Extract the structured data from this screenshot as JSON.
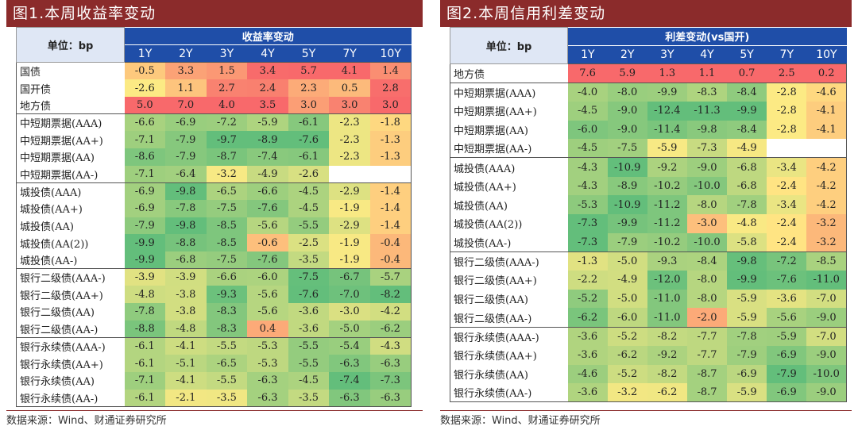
{
  "left": {
    "title": "图1.本周收益率变动",
    "unit_label": "单位：bp",
    "group_header": "收益率变动",
    "columns": [
      "1Y",
      "2Y",
      "3Y",
      "4Y",
      "5Y",
      "7Y",
      "10Y"
    ],
    "groups": [
      {
        "rows": [
          {
            "name": "国债",
            "values": [
              -0.5,
              3.3,
              1.5,
              3.4,
              5.7,
              4.1,
              1.4
            ]
          },
          {
            "name": "国开债",
            "values": [
              -2.6,
              1.1,
              2.7,
              2.4,
              2.3,
              0.5,
              2.8
            ]
          },
          {
            "name": "地方债",
            "values": [
              5.0,
              7.0,
              4.0,
              3.5,
              3.0,
              3.0,
              3.0
            ]
          }
        ]
      },
      {
        "rows": [
          {
            "name": "中短期票据(AAA)",
            "values": [
              -6.6,
              -6.9,
              -7.2,
              -5.9,
              -6.1,
              -2.3,
              -1.8
            ]
          },
          {
            "name": "中短期票据(AA+)",
            "values": [
              -7.1,
              -7.9,
              -9.7,
              -8.9,
              -7.6,
              -2.3,
              -1.3
            ]
          },
          {
            "name": "中短期票据(AA)",
            "values": [
              -8.6,
              -7.9,
              -8.7,
              -7.4,
              -6.1,
              -2.3,
              -1.3
            ]
          },
          {
            "name": "中短期票据(AA-)",
            "values": [
              -7.1,
              -6.4,
              -3.2,
              -4.9,
              -2.6,
              null,
              null
            ]
          }
        ]
      },
      {
        "rows": [
          {
            "name": "城投债(AAA)",
            "values": [
              -6.9,
              -9.8,
              -6.5,
              -6.6,
              -4.5,
              -2.9,
              -1.4
            ]
          },
          {
            "name": "城投债(AA+)",
            "values": [
              -6.9,
              -7.8,
              -7.5,
              -7.6,
              -4.5,
              -1.9,
              -1.4
            ]
          },
          {
            "name": "城投债(AA)",
            "values": [
              -7.9,
              -9.8,
              -8.5,
              -5.6,
              -5.5,
              -2.9,
              -1.4
            ]
          },
          {
            "name": "城投债(AA(2))",
            "values": [
              -9.9,
              -8.8,
              -8.5,
              -0.6,
              -2.5,
              -1.9,
              -0.4
            ]
          },
          {
            "name": "城投债(AA-)",
            "values": [
              -9.9,
              -6.8,
              -7.5,
              -7.6,
              -3.5,
              -1.9,
              -0.4
            ]
          }
        ]
      },
      {
        "rows": [
          {
            "name": "银行二级债(AAA-)",
            "values": [
              -3.9,
              -3.9,
              -6.6,
              -6.0,
              -7.5,
              -6.7,
              -5.7
            ]
          },
          {
            "name": "银行二级债(AA+)",
            "values": [
              -4.8,
              -3.8,
              -9.3,
              -5.6,
              -7.6,
              -7.0,
              -8.2
            ]
          },
          {
            "name": "银行二级债(AA)",
            "values": [
              -7.8,
              -3.8,
              -8.3,
              -5.6,
              -3.6,
              -3.0,
              -4.2
            ]
          },
          {
            "name": "银行二级债(AA-)",
            "values": [
              -8.8,
              -4.8,
              -8.3,
              0.4,
              -3.6,
              -5.0,
              -6.2
            ]
          }
        ]
      },
      {
        "rows": [
          {
            "name": "银行永续债(AAA-)",
            "values": [
              -6.1,
              -4.1,
              -5.5,
              -5.3,
              -5.5,
              -5.4,
              -4.3
            ]
          },
          {
            "name": "银行永续债(AA+)",
            "values": [
              -6.1,
              -5.1,
              -6.5,
              -5.3,
              -5.5,
              -6.3,
              -6.3
            ]
          },
          {
            "name": "银行永续债(AA)",
            "values": [
              -7.1,
              -4.1,
              -5.5,
              -6.3,
              -4.5,
              -7.4,
              -7.3
            ]
          },
          {
            "name": "银行永续债(AA-)",
            "values": [
              -6.1,
              -2.1,
              -3.5,
              -6.3,
              -3.5,
              -6.3,
              -6.3
            ]
          }
        ]
      }
    ],
    "source": "数据来源：Wind、财通证券研究所"
  },
  "right": {
    "title": "图2.本周信用利差变动",
    "unit_label": "单位：bp",
    "group_header": "利差变动(vs国开)",
    "columns": [
      "1Y",
      "2Y",
      "3Y",
      "4Y",
      "5Y",
      "7Y",
      "10Y"
    ],
    "groups": [
      {
        "rows": [
          {
            "name": "地方债",
            "values": [
              7.6,
              5.9,
              1.3,
              1.1,
              0.7,
              2.5,
              0.2
            ]
          }
        ]
      },
      {
        "rows": [
          {
            "name": "中短期票据(AAA)",
            "values": [
              -4.0,
              -8.0,
              -9.9,
              -8.3,
              -8.4,
              -2.8,
              -4.6
            ]
          },
          {
            "name": "中短期票据(AA+)",
            "values": [
              -4.5,
              -9.0,
              -12.4,
              -11.3,
              -9.9,
              -2.8,
              -4.1
            ]
          },
          {
            "name": "中短期票据(AA)",
            "values": [
              -6.0,
              -9.0,
              -11.4,
              -9.8,
              -8.4,
              -2.8,
              -4.1
            ]
          },
          {
            "name": "中短期票据(AA-)",
            "values": [
              -4.5,
              -7.5,
              -5.9,
              -7.3,
              -4.9,
              null,
              null
            ]
          }
        ]
      },
      {
        "rows": [
          {
            "name": "城投债(AAA)",
            "values": [
              -4.3,
              -10.9,
              -9.2,
              -9.0,
              -6.8,
              -3.4,
              -4.2
            ]
          },
          {
            "name": "城投债(AA+)",
            "values": [
              -4.3,
              -8.9,
              -10.2,
              -10.0,
              -6.8,
              -2.4,
              -4.2
            ]
          },
          {
            "name": "城投债(AA)",
            "values": [
              -5.3,
              -10.9,
              -11.2,
              -8.0,
              -7.8,
              -3.4,
              -4.2
            ]
          },
          {
            "name": "城投债(AA(2))",
            "values": [
              -7.3,
              -9.9,
              -11.2,
              -3.0,
              -4.8,
              -2.4,
              -3.2
            ]
          },
          {
            "name": "城投债(AA-)",
            "values": [
              -7.3,
              -7.9,
              -10.2,
              -10.0,
              -5.8,
              -2.4,
              -3.2
            ]
          }
        ]
      },
      {
        "rows": [
          {
            "name": "银行二级债(AAA-)",
            "values": [
              -1.3,
              -5.0,
              -9.3,
              -8.4,
              -9.8,
              -7.2,
              -8.5
            ]
          },
          {
            "name": "银行二级债(AA+)",
            "values": [
              -2.2,
              -4.9,
              -12.0,
              -8.0,
              -9.9,
              -7.6,
              -11.0
            ]
          },
          {
            "name": "银行二级债(AA)",
            "values": [
              -5.2,
              -5.0,
              -11.0,
              -8.0,
              -5.9,
              -3.6,
              -7.0
            ]
          },
          {
            "name": "银行二级债(AA-)",
            "values": [
              -6.2,
              -6.0,
              -11.0,
              -2.0,
              -5.9,
              -5.6,
              -9.0
            ]
          }
        ]
      },
      {
        "rows": [
          {
            "name": "银行永续债(AAA-)",
            "values": [
              -3.6,
              -5.2,
              -8.2,
              -7.7,
              -7.8,
              -5.9,
              -7.0
            ]
          },
          {
            "name": "银行永续债(AA+)",
            "values": [
              -3.6,
              -6.2,
              -9.2,
              -7.7,
              -7.9,
              -6.9,
              -9.0
            ]
          },
          {
            "name": "银行永续债(AA)",
            "values": [
              -4.6,
              -5.2,
              -8.2,
              -8.7,
              -6.9,
              -7.9,
              -10.0
            ]
          },
          {
            "name": "银行永续债(AA-)",
            "values": [
              -3.6,
              -3.2,
              -6.2,
              -8.7,
              -5.9,
              -6.9,
              -9.0
            ]
          }
        ]
      }
    ],
    "source": "数据来源：Wind、财通证券研究所"
  },
  "colors": {
    "title_bar": "#8b2b2b",
    "header": "#1f4ea8",
    "high": "#f8696b",
    "mid": "#ffeb84",
    "low": "#63be7b"
  }
}
